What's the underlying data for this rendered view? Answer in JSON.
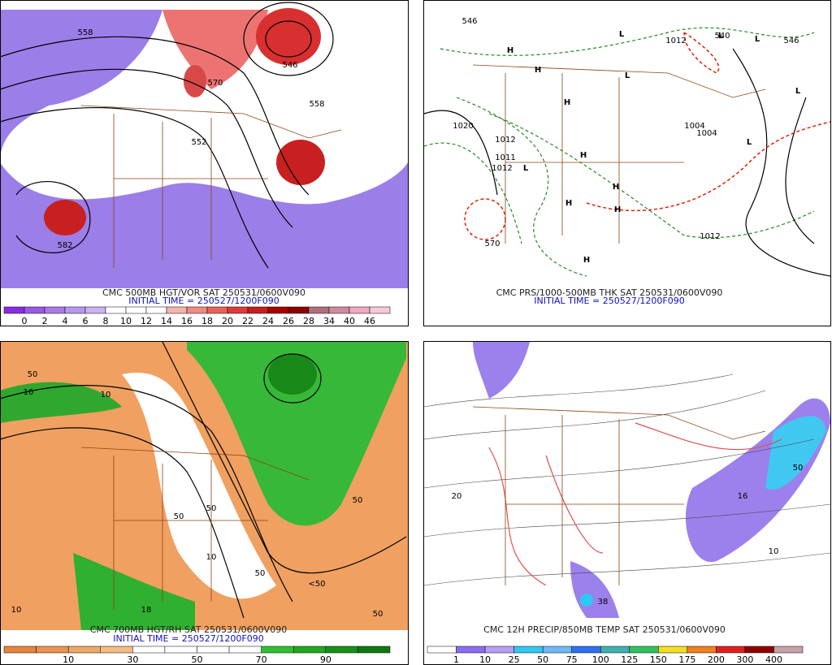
{
  "panels": [
    {
      "caption": "CMC 500MB HGT/VOR SAT 250531/0600V090",
      "initial_time": "INITIAL TIME = 250527/1200F090",
      "colorbar": {
        "colors": [
          "#8a2be2",
          "#9b59e6",
          "#a97be8",
          "#b898ec",
          "#c9b4f0",
          "#ffffff",
          "#ffffff",
          "#ffffff",
          "#f4b5b0",
          "#f08a84",
          "#e8625c",
          "#de3c3c",
          "#c81e1e",
          "#a80000",
          "#8b0000",
          "#b0707a",
          "#d08aa0",
          "#f0a8c0",
          "#f8c8d8"
        ],
        "labels": [
          "0",
          "2",
          "4",
          "6",
          "8",
          "10",
          "12",
          "14",
          "16",
          "18",
          "20",
          "22",
          "24",
          "26",
          "28",
          "34",
          "40",
          "46"
        ]
      },
      "map_labels": [
        "558",
        "570",
        "546",
        "558",
        "552",
        "582"
      ]
    },
    {
      "caption": "CMC PRS/1000-500MB THK SAT 250531/0600V090",
      "initial_time": "INITIAL TIME = 250527/1200F090",
      "map_labels": [
        "546",
        "540",
        "1012",
        "546",
        "1020",
        "1012",
        "1011",
        "1012",
        "1004",
        "1004",
        "1012",
        "570",
        "H",
        "H",
        "H",
        "H",
        "H",
        "H",
        "H",
        "H",
        "L",
        "L",
        "L",
        "L",
        "L",
        "L",
        "L"
      ]
    },
    {
      "caption": "CMC 700MB HGT/RH SAT 250531/0600V090",
      "initial_time": "INITIAL TIME = 250527/1200F090",
      "colorbar": {
        "colors": [
          "#e8843c",
          "#ec9450",
          "#f0a868",
          "#f4bc84",
          "#ffffff",
          "#ffffff",
          "#ffffff",
          "#ffffff",
          "#30c030",
          "#20a820",
          "#189018",
          "#107810"
        ],
        "labels": [
          "10",
          "30",
          "50",
          "70",
          "90"
        ]
      },
      "map_labels": [
        "50",
        "10",
        "10",
        "50",
        "50",
        "10",
        "50",
        "18",
        "50",
        "<50",
        "50",
        "10"
      ]
    },
    {
      "caption": "CMC 12H PRECIP/850MB TEMP SAT 250531/0600V090",
      "initial_time": "INITIAL TIME = 250527/1200F090",
      "colorbar": {
        "colors": [
          "#ffffff",
          "#8c6cf0",
          "#b4a0f4",
          "#30c8f0",
          "#70b8f8",
          "#3070f0",
          "#40b0b0",
          "#30c060",
          "#f0e020",
          "#f08020",
          "#e02020",
          "#900000",
          "#c8a0a8"
        ],
        "labels": [
          "1",
          "10",
          "25",
          "50",
          "75",
          "100",
          "125",
          "150",
          "175",
          "200",
          "300",
          "400"
        ]
      },
      "map_labels": [
        "16",
        "38",
        "20",
        "10",
        "50"
      ]
    }
  ]
}
